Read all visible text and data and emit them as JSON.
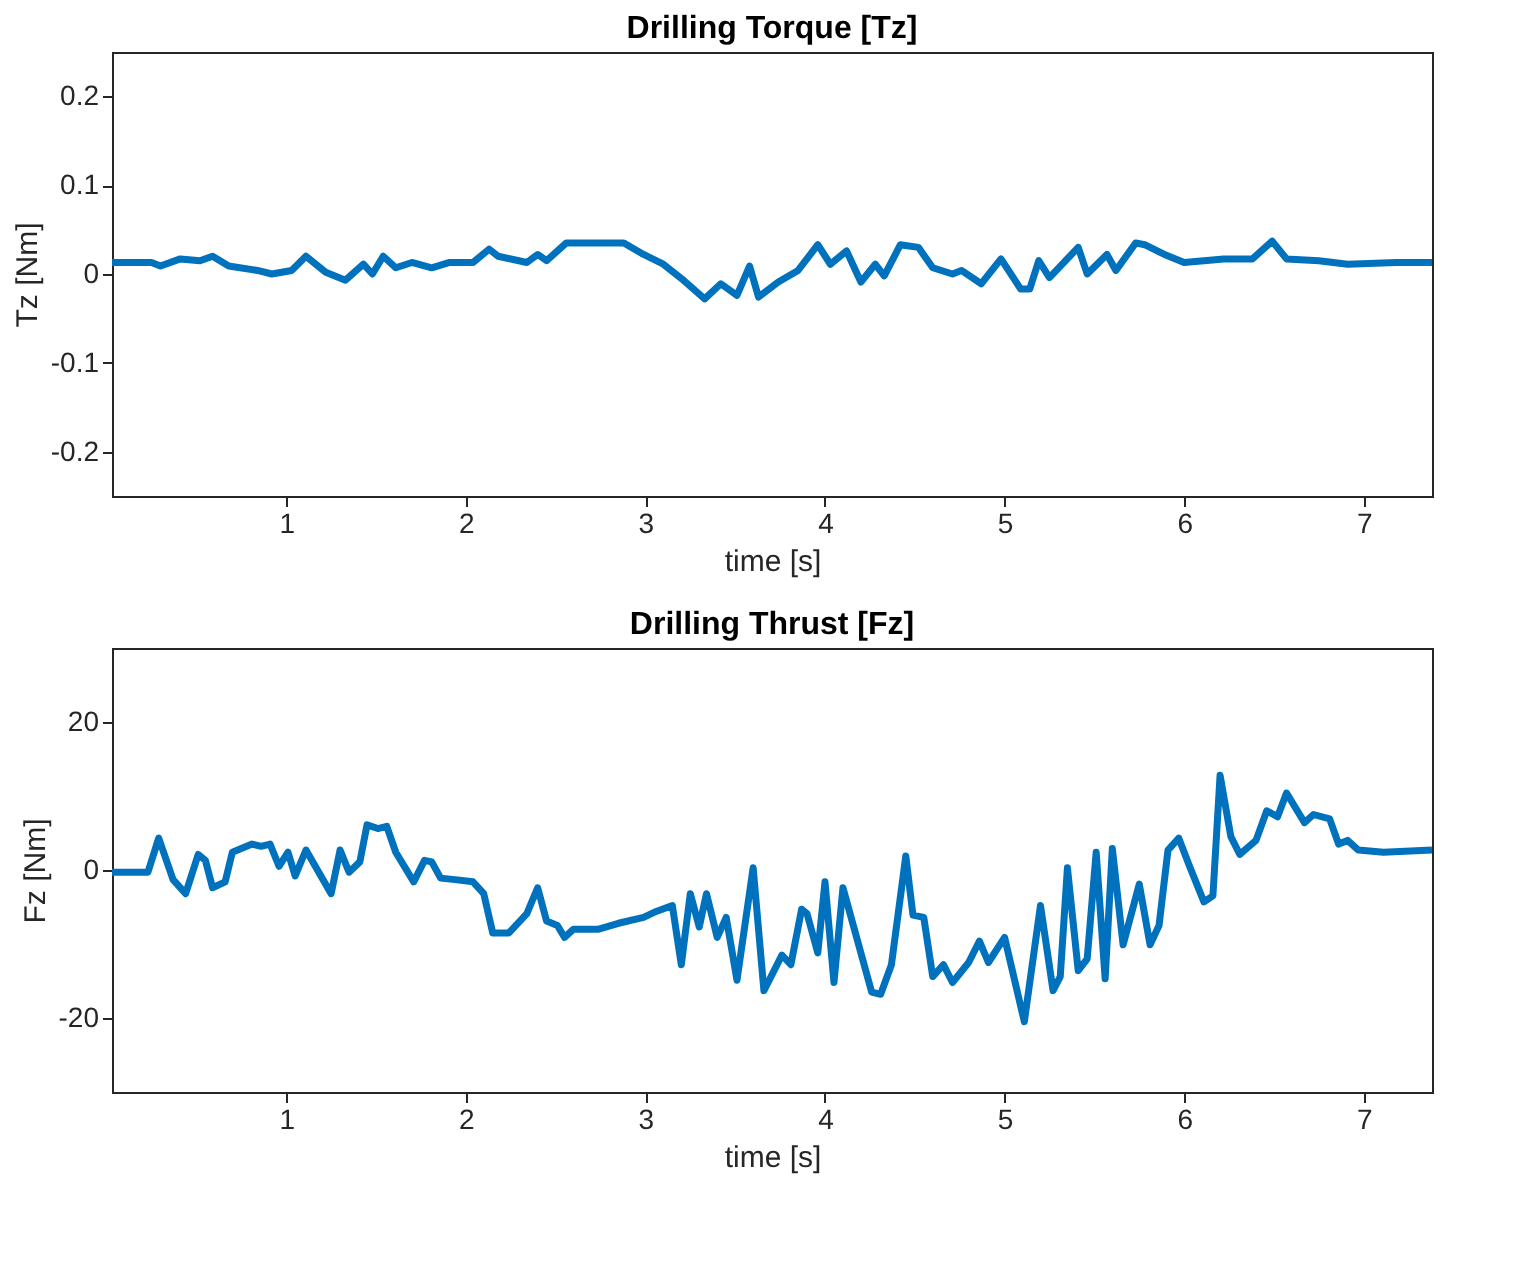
{
  "chart_data": [
    {
      "type": "line",
      "title": "Drilling Torque [Tz]",
      "xlabel": "time [s]",
      "ylabel": "Tz [Nm]",
      "xlim": [
        0.03,
        7.38
      ],
      "xticks": [
        1,
        2,
        3,
        4,
        5,
        6,
        7
      ],
      "ylim": [
        -0.25,
        0.25
      ],
      "yticks": [
        -0.2,
        -0.1,
        0,
        0.1,
        0.2
      ],
      "x": [
        0.03,
        0.25,
        0.3,
        0.41,
        0.52,
        0.59,
        0.68,
        0.84,
        0.92,
        1.03,
        1.11,
        1.22,
        1.33,
        1.43,
        1.48,
        1.54,
        1.61,
        1.7,
        1.81,
        1.91,
        2.04,
        2.13,
        2.18,
        2.34,
        2.4,
        2.45,
        2.56,
        2.67,
        2.77,
        2.88,
        2.99,
        3.1,
        3.2,
        3.33,
        3.42,
        3.51,
        3.58,
        3.63,
        3.74,
        3.85,
        3.96,
        4.03,
        4.12,
        4.2,
        4.28,
        4.33,
        4.42,
        4.52,
        4.6,
        4.71,
        4.76,
        4.87,
        4.98,
        5.09,
        5.14,
        5.19,
        5.25,
        5.41,
        5.46,
        5.57,
        5.62,
        5.73,
        5.78,
        5.89,
        6.0,
        6.22,
        6.38,
        6.49,
        6.57,
        6.75,
        6.91,
        7.18,
        7.38
      ],
      "series": [
        {
          "color": "#0072bd",
          "values": [
            0.013,
            0.013,
            0.009,
            0.017,
            0.015,
            0.02,
            0.009,
            0.004,
            0,
            0.004,
            0.02,
            0.002,
            -0.007,
            0.011,
            0,
            0.02,
            0.007,
            0.013,
            0.007,
            0.013,
            0.013,
            0.028,
            0.02,
            0.013,
            0.022,
            0.015,
            0.035,
            0.035,
            0.035,
            0.035,
            0.022,
            0.011,
            -0.005,
            -0.028,
            -0.011,
            -0.024,
            0.009,
            -0.026,
            -0.009,
            0.004,
            0.033,
            0.011,
            0.026,
            -0.009,
            0.011,
            -0.002,
            0.033,
            0.03,
            0.007,
            0,
            0.004,
            -0.011,
            0.017,
            -0.017,
            -0.017,
            0.015,
            -0.004,
            0.03,
            0,
            0.022,
            0.004,
            0.035,
            0.033,
            0.022,
            0.013,
            0.017,
            0.017,
            0.037,
            0.017,
            0.015,
            0.011,
            0.013,
            0.013
          ]
        }
      ]
    },
    {
      "type": "line",
      "title": "Drilling Thrust [Fz]",
      "xlabel": "time [s]",
      "ylabel": "Fz [Nm]",
      "xlim": [
        0.03,
        7.38
      ],
      "xticks": [
        1,
        2,
        3,
        4,
        5,
        6,
        7
      ],
      "ylim": [
        -30,
        30
      ],
      "yticks": [
        -20,
        0,
        20
      ],
      "x": [
        0.03,
        0.23,
        0.29,
        0.37,
        0.44,
        0.51,
        0.55,
        0.59,
        0.66,
        0.7,
        0.81,
        0.86,
        0.91,
        0.96,
        1.01,
        1.05,
        1.11,
        1.25,
        1.3,
        1.35,
        1.41,
        1.45,
        1.51,
        1.56,
        1.61,
        1.71,
        1.77,
        1.81,
        1.86,
        1.94,
        2.04,
        2.1,
        2.15,
        2.24,
        2.34,
        2.4,
        2.45,
        2.51,
        2.55,
        2.6,
        2.74,
        2.85,
        2.99,
        3.06,
        3.15,
        3.2,
        3.25,
        3.3,
        3.34,
        3.4,
        3.45,
        3.51,
        3.6,
        3.66,
        3.76,
        3.81,
        3.87,
        3.9,
        3.96,
        4.0,
        4.05,
        4.1,
        4.26,
        4.31,
        4.37,
        4.45,
        4.49,
        4.55,
        4.6,
        4.66,
        4.71,
        4.8,
        4.86,
        4.91,
        5.0,
        5.11,
        5.2,
        5.27,
        5.31,
        5.35,
        5.41,
        5.46,
        5.51,
        5.56,
        5.6,
        5.66,
        5.75,
        5.81,
        5.86,
        5.91,
        5.97,
        6.03,
        6.11,
        6.16,
        6.2,
        6.26,
        6.31,
        6.4,
        6.46,
        6.52,
        6.57,
        6.67,
        6.72,
        6.81,
        6.86,
        6.91,
        6.97,
        7.11,
        7.38
      ],
      "series": [
        {
          "color": "#0072bd",
          "values": [
            -0.3,
            -0.3,
            4.3,
            -1.3,
            -3.2,
            2.1,
            1.3,
            -2.4,
            -1.6,
            2.4,
            3.5,
            3.2,
            3.5,
            0.5,
            2.4,
            -0.8,
            2.7,
            -3.2,
            2.7,
            -0.3,
            1.1,
            6.1,
            5.6,
            5.9,
            2.4,
            -1.6,
            1.3,
            1.1,
            -1.1,
            -1.3,
            -1.6,
            -3.2,
            -8.5,
            -8.5,
            -5.9,
            -2.4,
            -6.9,
            -7.5,
            -9.1,
            -8.0,
            -8.0,
            -7.2,
            -6.4,
            -5.6,
            -4.8,
            -12.8,
            -3.2,
            -7.7,
            -3.2,
            -9.1,
            -6.4,
            -14.9,
            0.3,
            -16.3,
            -11.5,
            -12.8,
            -5.3,
            -5.9,
            -11.2,
            -1.6,
            -15.2,
            -2.4,
            -16.5,
            -16.8,
            -12.8,
            1.9,
            -6.1,
            -6.4,
            -14.4,
            -12.8,
            -15.2,
            -12.5,
            -9.6,
            -12.5,
            -9.1,
            -20.5,
            -4.8,
            -16.3,
            -14.4,
            0.3,
            -13.6,
            -12.0,
            2.4,
            -14.7,
            2.9,
            -10.1,
            -1.9,
            -10.1,
            -7.5,
            2.7,
            4.3,
            0.5,
            -4.3,
            -3.5,
            12.8,
            4.5,
            2.1,
            4.0,
            8.0,
            7.2,
            10.4,
            6.4,
            7.5,
            6.9,
            3.5,
            4.0,
            2.7,
            2.4,
            2.7
          ]
        }
      ]
    }
  ]
}
